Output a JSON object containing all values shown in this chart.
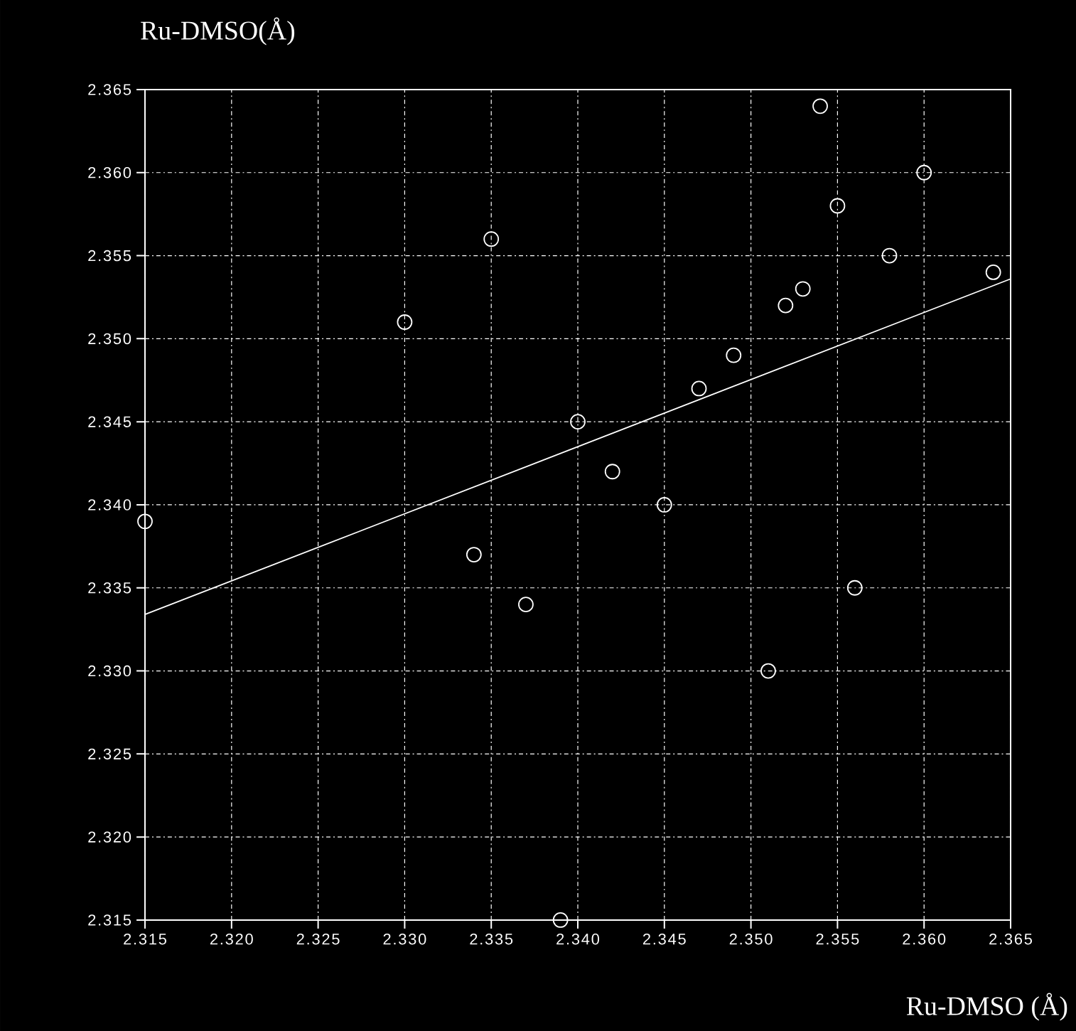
{
  "chart_data": {
    "type": "scatter",
    "xlabel": "Ru-DMSO (Å)",
    "ylabel": "Ru-DMSO(Å)",
    "xlim": [
      2.315,
      2.365
    ],
    "ylim": [
      2.315,
      2.365
    ],
    "xticks": [
      2.315,
      {
        "value": 2.32,
        "label": "2.320"
      },
      2.325,
      {
        "value": 2.33,
        "label": "2.330"
      },
      2.335,
      {
        "value": 2.34,
        "label": "2.340"
      },
      2.345,
      {
        "value": 2.35,
        "label": "2.350"
      },
      2.355,
      {
        "value": 2.36,
        "label": "2.360"
      },
      2.365
    ],
    "yticks": [
      2.315,
      {
        "value": 2.32,
        "label": "2.320"
      },
      2.325,
      {
        "value": 2.33,
        "label": "2.330"
      },
      2.335,
      {
        "value": 2.34,
        "label": "2.340"
      },
      2.345,
      {
        "value": 2.35,
        "label": "2.350"
      },
      2.355,
      {
        "value": 2.36,
        "label": "2.360"
      },
      2.365
    ],
    "grid": true,
    "series": [
      {
        "type": "scatter",
        "color": "#ffffff",
        "marker": "circle",
        "x": [
          2.315,
          2.33,
          2.335,
          2.334,
          2.337,
          2.339,
          2.34,
          2.342,
          2.345,
          2.347,
          2.349,
          2.352,
          2.353,
          2.354,
          2.355,
          2.358,
          2.36,
          2.364,
          2.351,
          2.356
        ],
        "values": [
          2.339,
          2.351,
          2.356,
          2.337,
          2.334,
          2.315,
          2.345,
          2.342,
          2.34,
          2.347,
          2.349,
          2.352,
          2.353,
          2.364,
          2.358,
          2.355,
          2.36,
          2.354,
          2.33,
          2.335
        ]
      },
      {
        "type": "line",
        "color": "#ffffff",
        "marker": "none",
        "x": [
          2.315,
          2.365
        ],
        "values": [
          2.3334,
          2.3536
        ]
      }
    ]
  }
}
